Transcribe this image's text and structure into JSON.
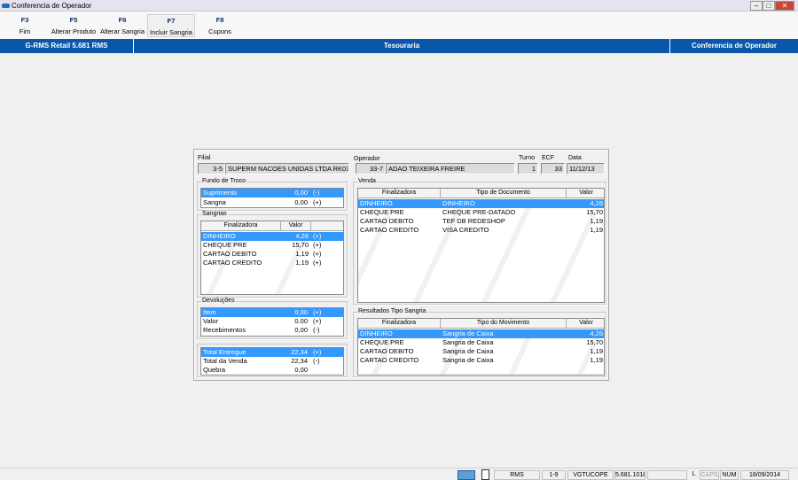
{
  "window": {
    "title": "Conferencia de Operador"
  },
  "toolbar": [
    {
      "key": "F3",
      "label": "Fim"
    },
    {
      "key": "F5",
      "label": "Alterar Produto"
    },
    {
      "key": "F6",
      "label": "Alterar Sangria"
    },
    {
      "key": "F7",
      "label": "Incluir Sangria"
    },
    {
      "key": "F8",
      "label": "Cupons"
    }
  ],
  "header": {
    "app": "G-RMS Retail 5.681 RMS",
    "module": "Tesouraria",
    "screen": "Conferencia de Operador"
  },
  "info": {
    "filial_label": "Filial",
    "filial_code": "3-5",
    "filial_name": "SUPERM NACOES UNIDAS LTDA RK03",
    "operador_label": "Operador",
    "operador_code": "33-7",
    "operador_name": "ADAO TEIXEIRA FREIRE",
    "turno_label": "Turno",
    "turno": "1",
    "ecf_label": "ECF",
    "ecf": "33",
    "data_label": "Data",
    "data": "11/12/13"
  },
  "fundo": {
    "title": "Fundo de Troco",
    "rows": [
      {
        "name": "Suprimento",
        "value": "0,00",
        "sign": "(-)"
      },
      {
        "name": "Sangria",
        "value": "0,00",
        "sign": "(+)"
      }
    ]
  },
  "sangrias": {
    "title": "Sangrias",
    "headers": [
      "Finalizadora",
      "Valor"
    ],
    "rows": [
      {
        "name": "DINHEIRO",
        "value": "4,26",
        "sign": "(+)"
      },
      {
        "name": "CHEQUE PRE",
        "value": "15,70",
        "sign": "(+)"
      },
      {
        "name": "CARTAO DEBITO",
        "value": "1,19",
        "sign": "(+)"
      },
      {
        "name": "CARTAO CREDITO",
        "value": "1,19",
        "sign": "(+)"
      }
    ]
  },
  "devolucoes": {
    "title": "Devoluções",
    "rows": [
      {
        "name": "Item",
        "value": "0,00",
        "sign": "(+)"
      },
      {
        "name": "Valor",
        "value": "0.00",
        "sign": "(+)"
      },
      {
        "name": "Recebimentos",
        "value": "0,00",
        "sign": "(-)"
      }
    ]
  },
  "totais": {
    "rows": [
      {
        "name": "Total Entregue",
        "value": "22,34",
        "sign": "(+)"
      },
      {
        "name": "Total da Venda",
        "value": "22,34",
        "sign": "(-)"
      },
      {
        "name": "Quebra",
        "value": "0,00",
        "sign": ""
      }
    ]
  },
  "venda": {
    "title": "Venda",
    "headers": [
      "Finalizadora",
      "Tipo de Documento",
      "Valor"
    ],
    "rows": [
      {
        "fin": "DINHEIRO",
        "tipo": "DINHEIRO",
        "valor": "4,26"
      },
      {
        "fin": "CHEQUE PRE",
        "tipo": "CHEQUE PRE-DATADO",
        "valor": "15,70"
      },
      {
        "fin": "CARTAO DEBITO",
        "tipo": "TEF DB REDESHOP",
        "valor": "1,19"
      },
      {
        "fin": "CARTAO CREDITO",
        "tipo": "VISA CREDITO",
        "valor": "1,19"
      }
    ]
  },
  "resultados": {
    "title": "Resultados Tipo Sangria",
    "headers": [
      "Finalizadora",
      "Tipo do Movimento",
      "Valor"
    ],
    "rows": [
      {
        "fin": "DINHEIRO",
        "tipo": "Sangria de Caixa",
        "valor": "4,26"
      },
      {
        "fin": "CHEQUE PRE",
        "tipo": "Sangria de Caixa",
        "valor": "15,70"
      },
      {
        "fin": "CARTAO DEBITO",
        "tipo": "Sangria de Caixa",
        "valor": "1,19"
      },
      {
        "fin": "CARTAO CREDITO",
        "tipo": "Sangria de Caixa",
        "valor": "1,19"
      }
    ]
  },
  "status": {
    "system": "RMS",
    "filial": "1-9",
    "user": "VGTUCOPE",
    "version": "5.681.1018",
    "l": "L",
    "caps": "CAPS",
    "num": "NUM",
    "date": "18/09/2014"
  }
}
